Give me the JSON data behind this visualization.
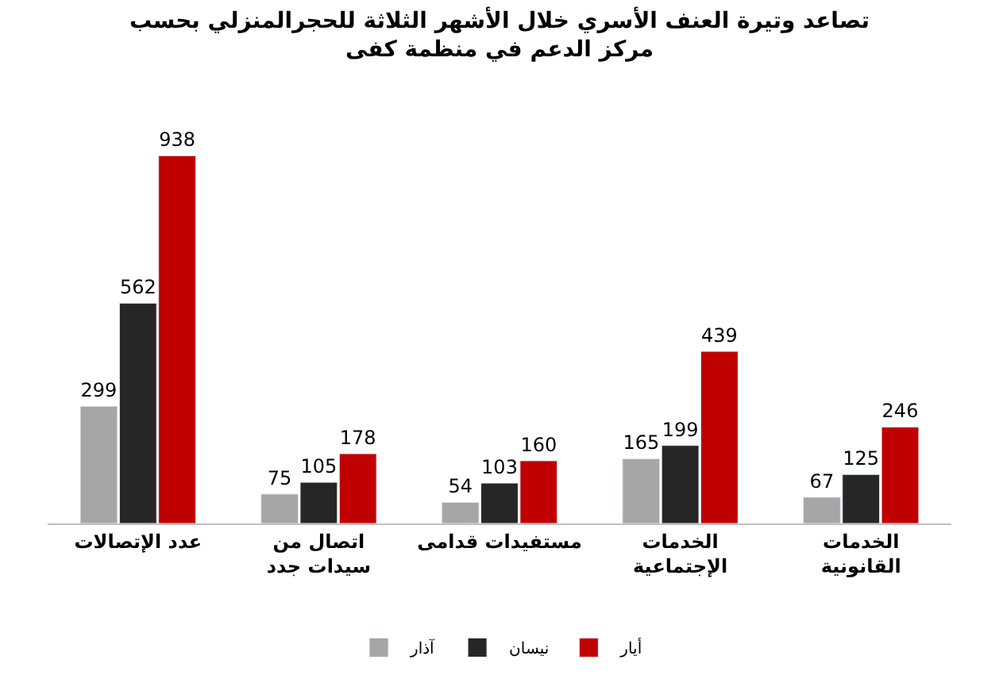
{
  "chart_data": {
    "type": "bar",
    "title": "تصاعد وتيرة العنف الأسري خلال الأشهر الثلاثة للحجرالمنزلي بحسب\nمركز الدعم في منظمة كفى",
    "categories": [
      "عدد الإتصالات",
      "اتصال من\nسيدات جدد",
      "مستفيدات قدامى",
      "الخدمات\nالإجتماعية",
      "الخدمات\nالقانونية"
    ],
    "series": [
      {
        "name": "آذار",
        "color": "#a6a6a6",
        "values": [
          299,
          75,
          54,
          165,
          67
        ]
      },
      {
        "name": "نيسان",
        "color": "#262626",
        "values": [
          562,
          105,
          103,
          199,
          125
        ]
      },
      {
        "name": "أيار",
        "color": "#c00000",
        "values": [
          938,
          178,
          160,
          439,
          246
        ]
      }
    ],
    "data_labels": true,
    "legend": "bottom"
  }
}
